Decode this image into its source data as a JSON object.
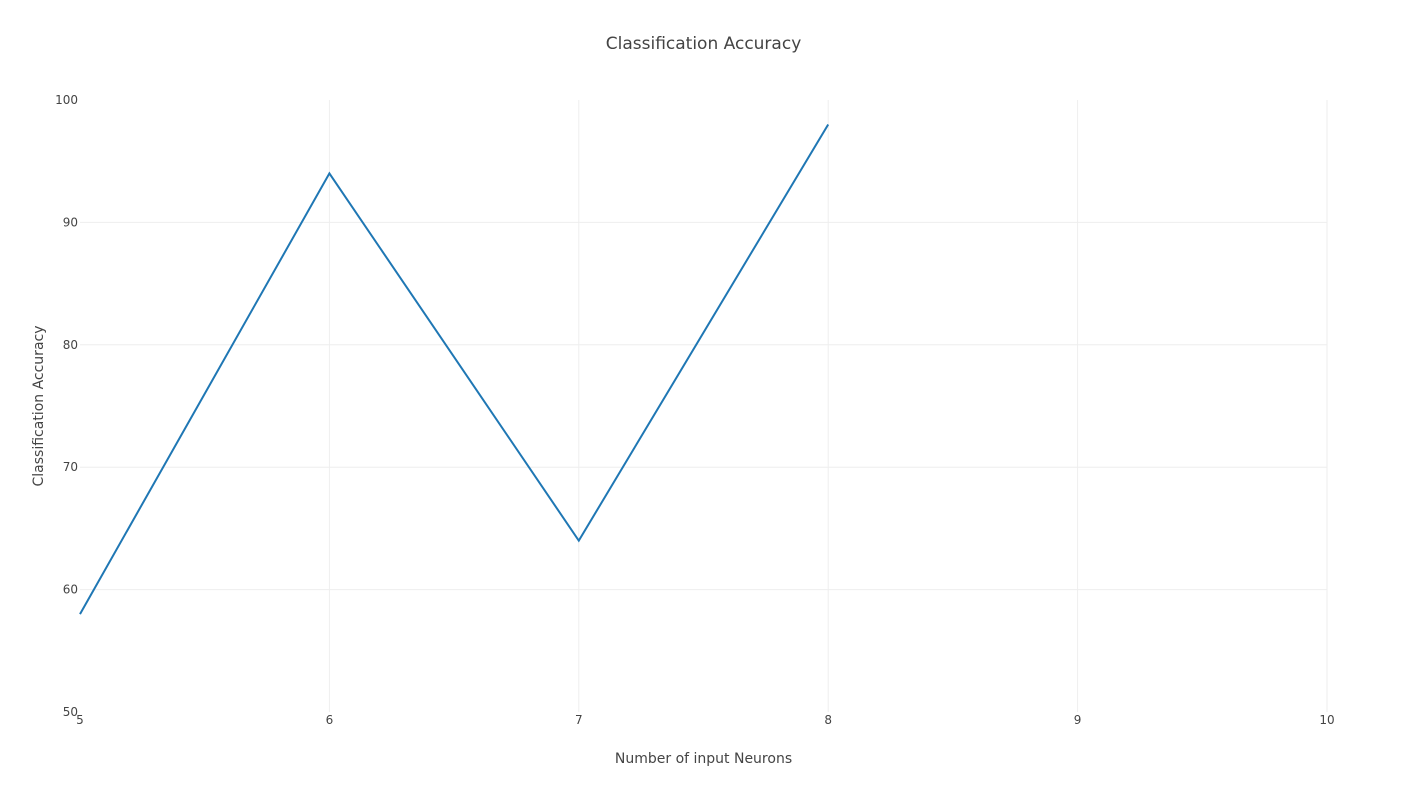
{
  "chart_data": {
    "type": "line",
    "title": "Classification Accuracy",
    "xlabel": "Number of input Neurons",
    "ylabel": "Classification Accuracy",
    "xlim": [
      5,
      10
    ],
    "ylim": [
      50,
      100
    ],
    "x_ticks": [
      "5",
      "6",
      "7",
      "8",
      "9",
      "10"
    ],
    "y_ticks": [
      "50",
      "60",
      "70",
      "80",
      "90",
      "100"
    ],
    "grid": true,
    "series": [
      {
        "x": [
          5,
          6,
          7,
          8
        ],
        "y": [
          58,
          94,
          64,
          98
        ],
        "color": "#1f77b4"
      }
    ]
  }
}
